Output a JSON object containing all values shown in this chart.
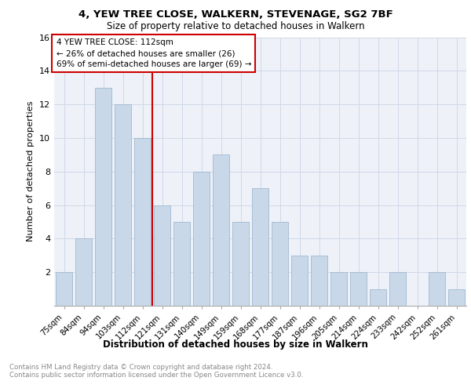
{
  "title1": "4, YEW TREE CLOSE, WALKERN, STEVENAGE, SG2 7BF",
  "title2": "Size of property relative to detached houses in Walkern",
  "xlabel": "Distribution of detached houses by size in Walkern",
  "ylabel": "Number of detached properties",
  "categories": [
    "75sqm",
    "84sqm",
    "94sqm",
    "103sqm",
    "112sqm",
    "121sqm",
    "131sqm",
    "140sqm",
    "149sqm",
    "159sqm",
    "168sqm",
    "177sqm",
    "187sqm",
    "196sqm",
    "205sqm",
    "214sqm",
    "224sqm",
    "233sqm",
    "242sqm",
    "252sqm",
    "261sqm"
  ],
  "values": [
    2,
    4,
    13,
    12,
    10,
    6,
    5,
    8,
    9,
    5,
    7,
    5,
    3,
    3,
    2,
    2,
    1,
    2,
    0,
    2,
    1
  ],
  "bar_color": "#c8d8e8",
  "bar_edge_color": "#a0b8d0",
  "vline_x": 4.5,
  "vline_color": "#cc0000",
  "annotation_text": "4 YEW TREE CLOSE: 112sqm\n← 26% of detached houses are smaller (26)\n69% of semi-detached houses are larger (69) →",
  "annotation_box_color": "#ffffff",
  "annotation_box_edge": "#cc0000",
  "ylim": [
    0,
    16
  ],
  "yticks": [
    0,
    2,
    4,
    6,
    8,
    10,
    12,
    14,
    16
  ],
  "footer_text": "Contains HM Land Registry data © Crown copyright and database right 2024.\nContains public sector information licensed under the Open Government Licence v3.0.",
  "grid_color": "#d0d8e8",
  "background_color": "#eef2f8"
}
